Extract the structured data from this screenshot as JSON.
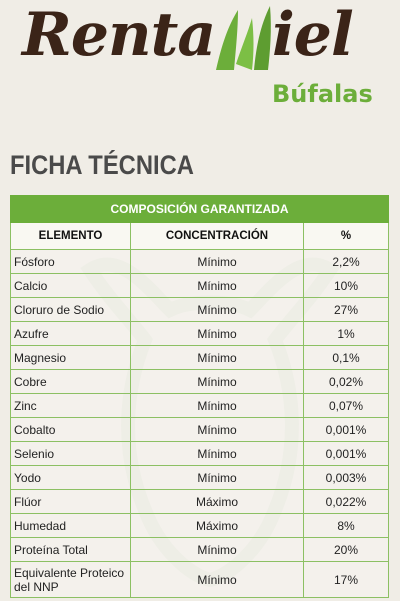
{
  "logo": {
    "renta": "Renta",
    "iel": "iel",
    "bufalas": "Búfalas",
    "colors": {
      "brown": "#3b2418",
      "green": "#6cae3a"
    }
  },
  "heading": "FICHA TÉCNICA",
  "table": {
    "caption": "COMPOSICIÓN GARANTIZADA",
    "headers": [
      "ELEMENTO",
      "CONCENTRACIÓN",
      "%"
    ],
    "rows": [
      {
        "elemento": "Fósforo",
        "concentracion": "Mínimo",
        "porcentaje": "2,2%"
      },
      {
        "elemento": "Calcio",
        "concentracion": "Mínimo",
        "porcentaje": "10%"
      },
      {
        "elemento": "Cloruro de Sodio",
        "concentracion": "Mínimo",
        "porcentaje": "27%"
      },
      {
        "elemento": "Azufre",
        "concentracion": "Mínimo",
        "porcentaje": "1%"
      },
      {
        "elemento": "Magnesio",
        "concentracion": "Mínimo",
        "porcentaje": "0,1%"
      },
      {
        "elemento": "Cobre",
        "concentracion": "Mínimo",
        "porcentaje": "0,02%"
      },
      {
        "elemento": "Zinc",
        "concentracion": "Mínimo",
        "porcentaje": "0,07%"
      },
      {
        "elemento": "Cobalto",
        "concentracion": "Mínimo",
        "porcentaje": "0,001%"
      },
      {
        "elemento": "Selenio",
        "concentracion": "Mínimo",
        "porcentaje": "0,001%"
      },
      {
        "elemento": "Yodo",
        "concentracion": "Mínimo",
        "porcentaje": "0,003%"
      },
      {
        "elemento": "Flúor",
        "concentracion": "Máximo",
        "porcentaje": "0,022%"
      },
      {
        "elemento": "Humedad",
        "concentracion": "Máximo",
        "porcentaje": "8%"
      },
      {
        "elemento": "Proteína Total",
        "concentracion": "Mínimo",
        "porcentaje": "20%"
      },
      {
        "elemento": "Equivalente Proteico del NNP",
        "concentracion": "Mínimo",
        "porcentaje": "17%"
      }
    ]
  }
}
